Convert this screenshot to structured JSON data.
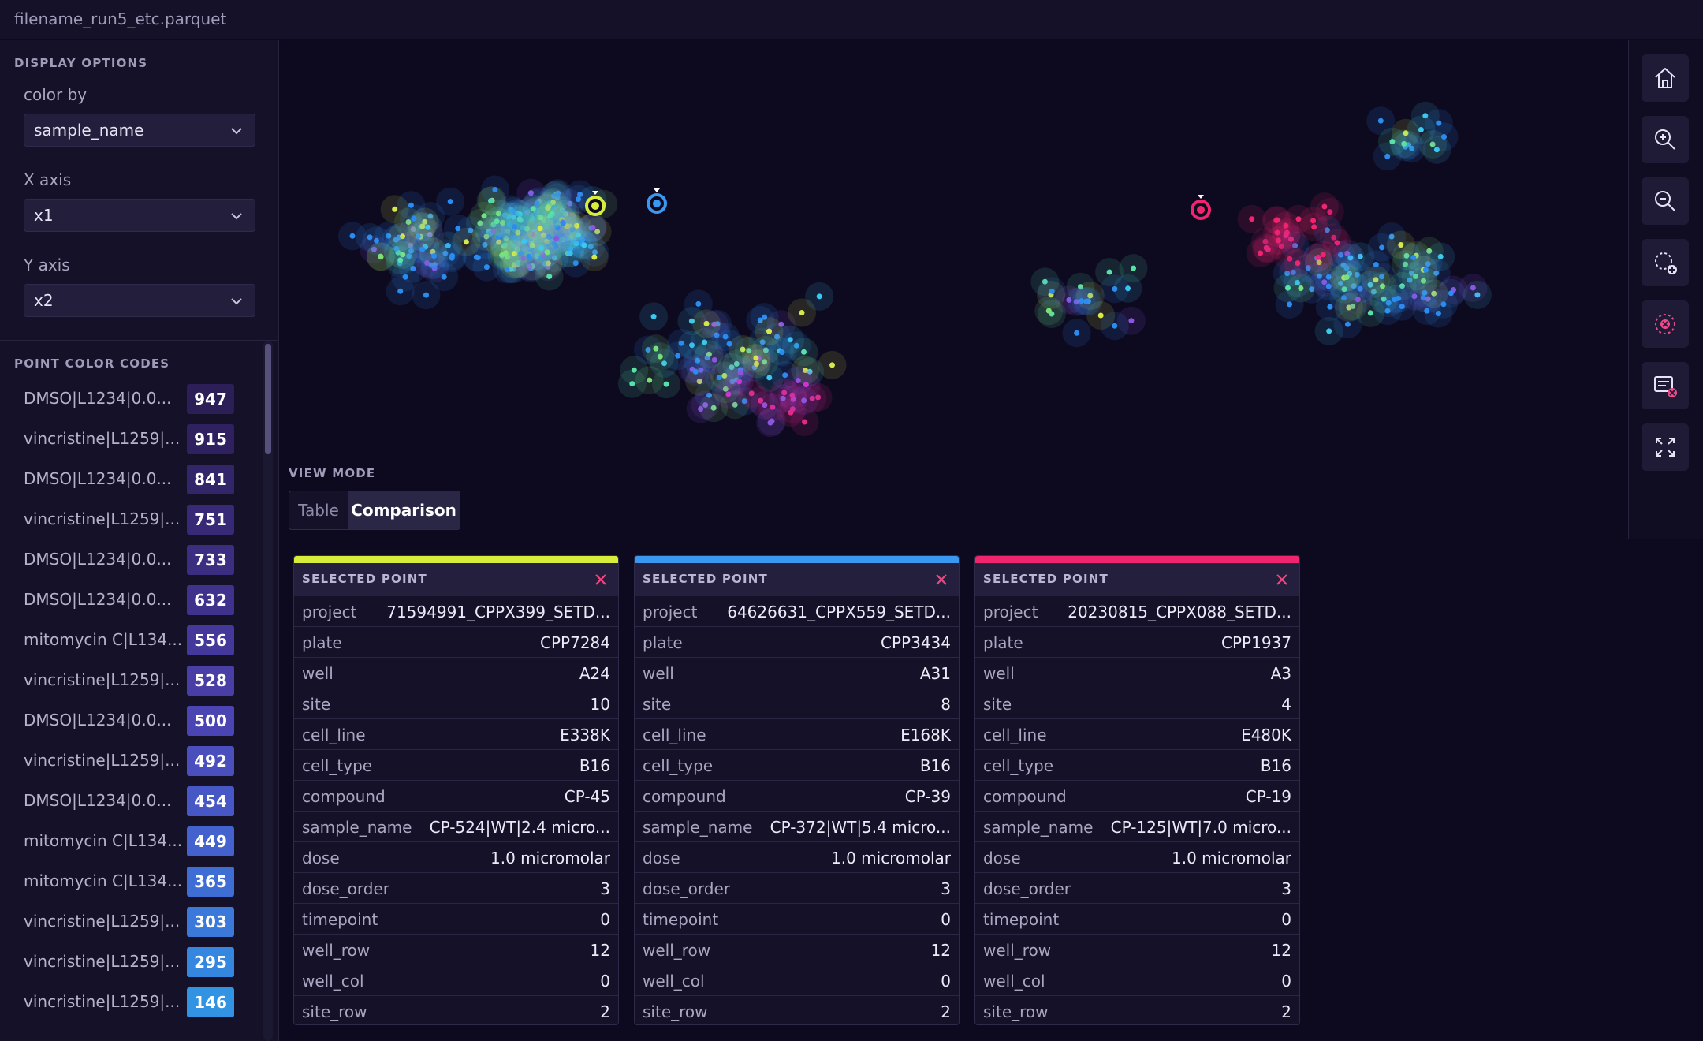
{
  "file": {
    "name": "filename_run5_etc.parquet"
  },
  "display_options": {
    "title": "DISPLAY OPTIONS",
    "color_by": {
      "label": "color by",
      "value": "sample_name"
    },
    "x_axis": {
      "label": "X axis",
      "value": "x1"
    },
    "y_axis": {
      "label": "Y axis",
      "value": "x2"
    }
  },
  "legend": {
    "title": "POINT COLOR CODES",
    "items": [
      {
        "name": "DMSO|L1234|0.0...",
        "count": "947",
        "color": "#2c1f57"
      },
      {
        "name": "vincristine|L1259|...",
        "count": "915",
        "color": "#2f2160"
      },
      {
        "name": "DMSO|L1234|0.0...",
        "count": "841",
        "color": "#33256a"
      },
      {
        "name": "vincristine|L1259|...",
        "count": "751",
        "color": "#372975"
      },
      {
        "name": "DMSO|L1234|0.0...",
        "count": "733",
        "color": "#3b2d80"
      },
      {
        "name": "DMSO|L1234|0.0...",
        "count": "632",
        "color": "#3f328d"
      },
      {
        "name": "mitomycin C|L134...",
        "count": "556",
        "color": "#44389a"
      },
      {
        "name": "vincristine|L1259|...",
        "count": "528",
        "color": "#483ea6"
      },
      {
        "name": "DMSO|L1234|0.0...",
        "count": "500",
        "color": "#4a45b2"
      },
      {
        "name": "vincristine|L1259|...",
        "count": "492",
        "color": "#4a4fbd"
      },
      {
        "name": "DMSO|L1234|0.0...",
        "count": "454",
        "color": "#4758c6"
      },
      {
        "name": "mitomycin C|L134...",
        "count": "449",
        "color": "#4362cd"
      },
      {
        "name": "mitomycin C|L134...",
        "count": "365",
        "color": "#3e6dd4"
      },
      {
        "name": "vincristine|L1259|...",
        "count": "303",
        "color": "#3a79da"
      },
      {
        "name": "vincristine|L1259|...",
        "count": "295",
        "color": "#3586df"
      },
      {
        "name": "vincristine|L1259|...",
        "count": "146",
        "color": "#3293e3"
      }
    ]
  },
  "view_mode": {
    "label": "VIEW MODE",
    "options": [
      "Table",
      "Comparison"
    ],
    "selected": "Comparison"
  },
  "toolbar": [
    "home-icon",
    "zoom-in-icon",
    "zoom-out-icon",
    "lasso-add-icon",
    "clear-selection-icon",
    "clear-list-icon",
    "fullscreen-icon"
  ],
  "cards": [
    {
      "title": "SELECTED POINT",
      "accent": "#d8ec3c",
      "rows": [
        {
          "key": "project",
          "value": "71594991_CPPX399_SETD..."
        },
        {
          "key": "plate",
          "value": "CPP7284"
        },
        {
          "key": "well",
          "value": "A24"
        },
        {
          "key": "site",
          "value": "10"
        },
        {
          "key": "cell_line",
          "value": "E338K"
        },
        {
          "key": "cell_type",
          "value": "B16"
        },
        {
          "key": "compound",
          "value": "CP-45"
        },
        {
          "key": "sample_name",
          "value": "CP-524|WT|2.4 micro..."
        },
        {
          "key": "dose",
          "value": "1.0 micromolar"
        },
        {
          "key": "dose_order",
          "value": "3"
        },
        {
          "key": "timepoint",
          "value": "0"
        },
        {
          "key": "well_row",
          "value": "12"
        },
        {
          "key": "well_col",
          "value": "0"
        },
        {
          "key": "site_row",
          "value": "2"
        }
      ]
    },
    {
      "title": "SELECTED POINT",
      "accent": "#3a97f2",
      "rows": [
        {
          "key": "project",
          "value": "64626631_CPPX559_SETD..."
        },
        {
          "key": "plate",
          "value": "CPP3434"
        },
        {
          "key": "well",
          "value": "A31"
        },
        {
          "key": "site",
          "value": "8"
        },
        {
          "key": "cell_line",
          "value": "E168K"
        },
        {
          "key": "cell_type",
          "value": "B16"
        },
        {
          "key": "compound",
          "value": "CP-39"
        },
        {
          "key": "sample_name",
          "value": "CP-372|WT|5.4 micro..."
        },
        {
          "key": "dose",
          "value": "1.0 micromolar"
        },
        {
          "key": "dose_order",
          "value": "3"
        },
        {
          "key": "timepoint",
          "value": "0"
        },
        {
          "key": "well_row",
          "value": "12"
        },
        {
          "key": "well_col",
          "value": "0"
        },
        {
          "key": "site_row",
          "value": "2"
        }
      ]
    },
    {
      "title": "SELECTED POINT",
      "accent": "#f0246f",
      "rows": [
        {
          "key": "project",
          "value": "20230815_CPPX088_SETD..."
        },
        {
          "key": "plate",
          "value": "CPP1937"
        },
        {
          "key": "well",
          "value": "A3"
        },
        {
          "key": "site",
          "value": "4"
        },
        {
          "key": "cell_line",
          "value": "E480K"
        },
        {
          "key": "cell_type",
          "value": "B16"
        },
        {
          "key": "compound",
          "value": "CP-19"
        },
        {
          "key": "sample_name",
          "value": "CP-125|WT|7.0 micro..."
        },
        {
          "key": "dose",
          "value": "1.0 micromolar"
        },
        {
          "key": "dose_order",
          "value": "3"
        },
        {
          "key": "timepoint",
          "value": "0"
        },
        {
          "key": "well_row",
          "value": "12"
        },
        {
          "key": "well_col",
          "value": "0"
        },
        {
          "key": "site_row",
          "value": "2"
        }
      ]
    }
  ]
}
